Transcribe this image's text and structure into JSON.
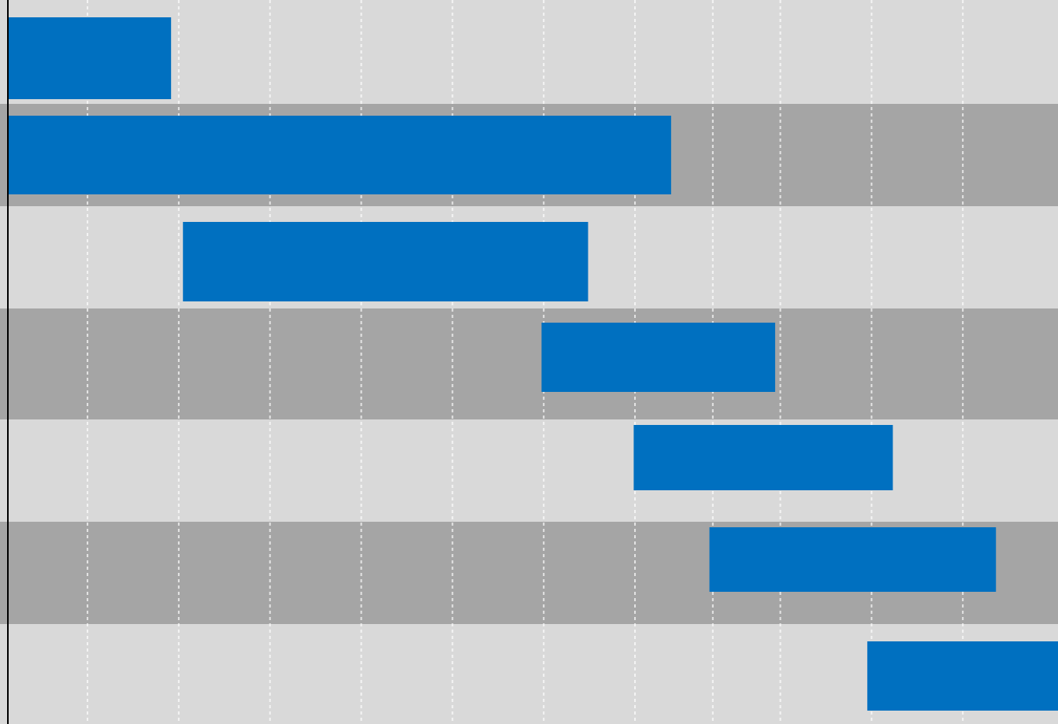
{
  "chart_data": {
    "type": "bar",
    "orientation": "horizontal-gantt",
    "title": "",
    "xlabel": "",
    "ylabel": "",
    "grid": true,
    "legend": "none",
    "x_range": [
      0,
      1.15
    ],
    "gridline_x": [
      0.0864,
      0.1864,
      0.2864,
      0.3864,
      0.4864,
      0.5864,
      0.6864,
      0.7717,
      0.8457,
      0.9457,
      1.0457
    ],
    "colors": {
      "bar": "#0070c0",
      "band_light": "#d9d9d9",
      "band_dark": "#a5a5a5",
      "grid": "#ffffff",
      "axis": "#000000"
    },
    "series": [
      {
        "tasks": [
          {
            "start": 0.0,
            "end": 0.178
          },
          {
            "start": 0.0,
            "end": 0.726
          },
          {
            "start": 0.191,
            "end": 0.635
          },
          {
            "start": 0.584,
            "end": 0.84
          },
          {
            "start": 0.685,
            "end": 0.969
          },
          {
            "start": 0.768,
            "end": 1.082
          },
          {
            "start": 0.941,
            "end": 1.15
          }
        ]
      }
    ]
  }
}
